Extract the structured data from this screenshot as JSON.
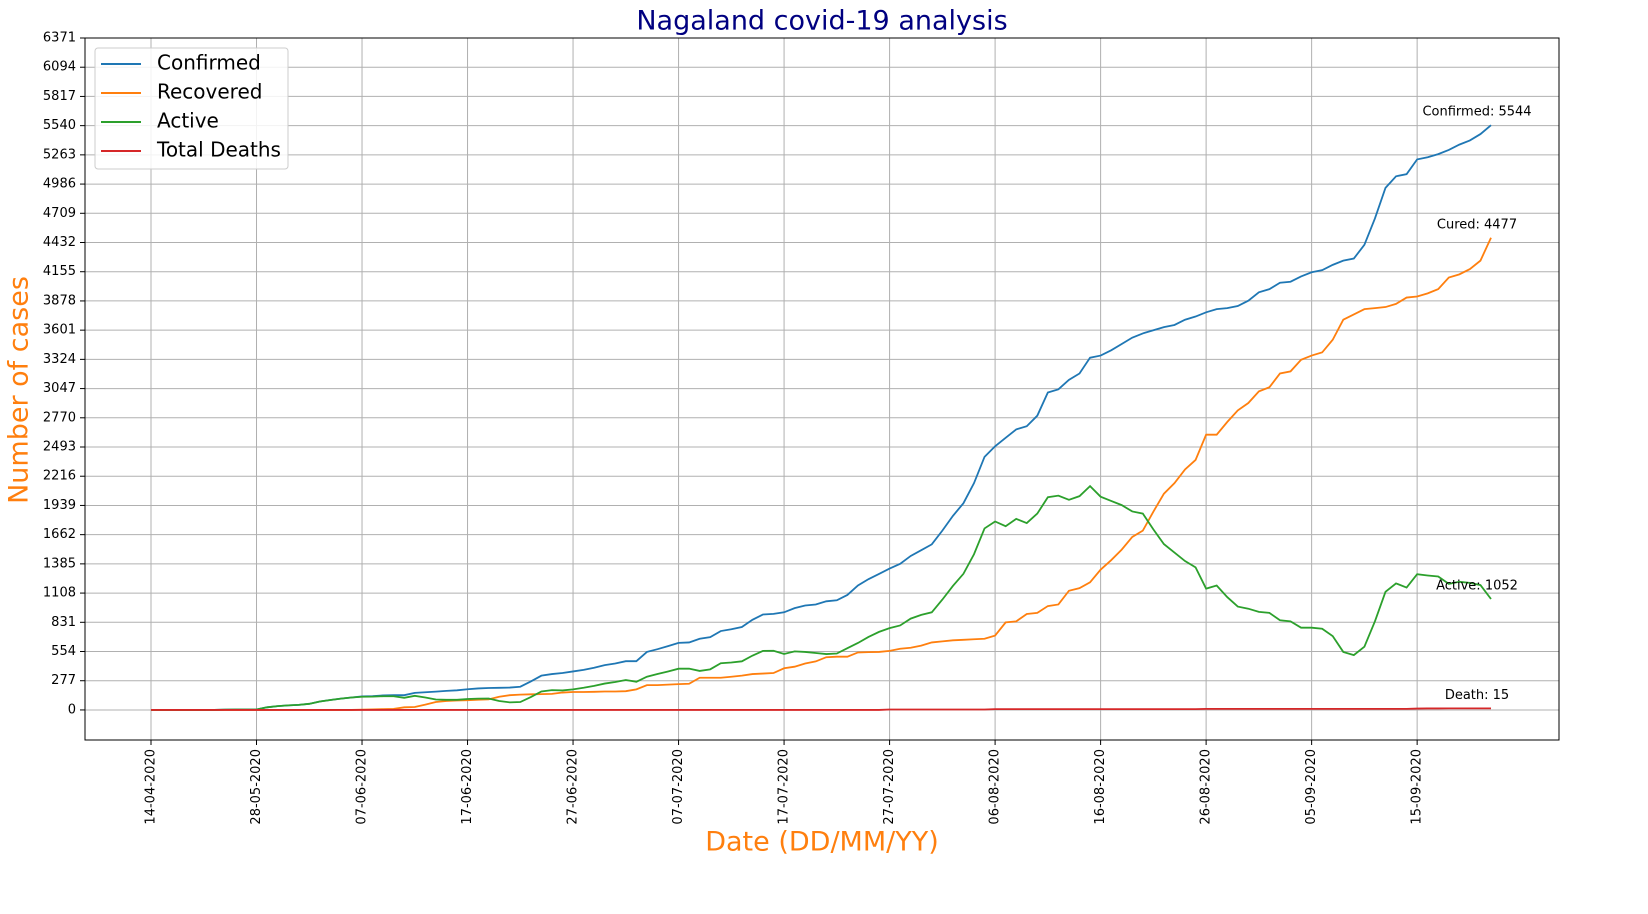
{
  "chart_data": {
    "type": "line",
    "title": "Nagaland covid-19 analysis",
    "x_label": "Date (DD/MM/YY)",
    "y_label": "Number of cases",
    "categories": [
      "14-04-2020",
      null,
      null,
      null,
      null,
      null,
      null,
      null,
      null,
      null,
      "28-05-2020",
      null,
      null,
      null,
      null,
      null,
      null,
      null,
      null,
      null,
      "07-06-2020",
      null,
      null,
      null,
      null,
      null,
      null,
      null,
      null,
      null,
      "17-06-2020",
      null,
      null,
      null,
      null,
      null,
      null,
      null,
      null,
      null,
      "27-06-2020",
      null,
      null,
      null,
      null,
      null,
      null,
      null,
      null,
      null,
      "07-07-2020",
      null,
      null,
      null,
      null,
      null,
      null,
      null,
      null,
      null,
      "17-07-2020",
      null,
      null,
      null,
      null,
      null,
      null,
      null,
      null,
      null,
      "27-07-2020",
      null,
      null,
      null,
      null,
      null,
      null,
      null,
      null,
      null,
      "06-08-2020",
      null,
      null,
      null,
      null,
      null,
      null,
      null,
      null,
      null,
      "16-08-2020",
      null,
      null,
      null,
      null,
      null,
      null,
      null,
      null,
      null,
      "26-08-2020",
      null,
      null,
      null,
      null,
      null,
      null,
      null,
      null,
      null,
      "05-09-2020",
      null,
      null,
      null,
      null,
      null,
      null,
      null,
      null,
      null,
      "15-09-2020",
      null,
      null,
      null,
      null,
      null,
      null,
      null
    ],
    "series": [
      {
        "name": "Confirmed",
        "color": "#1f77b4",
        "values": [
          0,
          0,
          0,
          0,
          0,
          0,
          0,
          3,
          4,
          4,
          4,
          25,
          36,
          43,
          48,
          58,
          80,
          94,
          107,
          118,
          128,
          131,
          138,
          140,
          140,
          162,
          168,
          174,
          181,
          186,
          196,
          204,
          208,
          210,
          212,
          220,
          270,
          325,
          340,
          350,
          365,
          380,
          400,
          425,
          440,
          462,
          462,
          550,
          576,
          605,
          636,
          640,
          675,
          690,
          748,
          765,
          786,
          855,
          905,
          911,
          926,
          965,
          990,
          1000,
          1030,
          1040,
          1090,
          1180,
          1240,
          1290,
          1340,
          1385,
          1460,
          1515,
          1570,
          1700,
          1840,
          1960,
          2150,
          2400,
          2500,
          2580,
          2660,
          2690,
          2790,
          3010,
          3040,
          3130,
          3190,
          3340,
          3360,
          3410,
          3470,
          3530,
          3570,
          3600,
          3630,
          3650,
          3700,
          3730,
          3770,
          3800,
          3810,
          3830,
          3880,
          3960,
          3990,
          4050,
          4060,
          4110,
          4150,
          4170,
          4220,
          4260,
          4280,
          4410,
          4660,
          4950,
          5060,
          5080,
          5220,
          5240,
          5270,
          5310,
          5360,
          5400,
          5460,
          5544
        ]
      },
      {
        "name": "Recovered",
        "color": "#ff7f0e",
        "values": [
          0,
          0,
          0,
          0,
          0,
          0,
          0,
          0,
          0,
          0,
          0,
          0,
          0,
          0,
          0,
          0,
          0,
          0,
          0,
          0,
          3,
          5,
          8,
          10,
          25,
          28,
          50,
          75,
          85,
          90,
          92,
          97,
          100,
          125,
          140,
          145,
          148,
          150,
          152,
          165,
          170,
          170,
          172,
          175,
          175,
          178,
          195,
          235,
          235,
          240,
          245,
          248,
          305,
          305,
          305,
          315,
          325,
          340,
          345,
          350,
          395,
          410,
          440,
          460,
          500,
          505,
          505,
          545,
          548,
          550,
          560,
          580,
          590,
          610,
          640,
          650,
          660,
          665,
          670,
          675,
          705,
          830,
          840,
          910,
          920,
          985,
          1000,
          1130,
          1155,
          1210,
          1330,
          1420,
          1520,
          1640,
          1700,
          1880,
          2050,
          2150,
          2280,
          2370,
          2610,
          2610,
          2730,
          2840,
          2910,
          3020,
          3060,
          3190,
          3210,
          3320,
          3360,
          3390,
          3510,
          3700,
          3750,
          3800,
          3810,
          3820,
          3850,
          3910,
          3920,
          3950,
          3990,
          4100,
          4130,
          4180,
          4260,
          4477
        ]
      },
      {
        "name": "Active",
        "color": "#2ca02c",
        "values": [
          0,
          0,
          0,
          0,
          0,
          0,
          0,
          3,
          4,
          4,
          4,
          25,
          36,
          43,
          48,
          58,
          80,
          94,
          107,
          118,
          125,
          126,
          130,
          130,
          115,
          134,
          118,
          99,
          96,
          96,
          104,
          107,
          108,
          85,
          72,
          75,
          122,
          175,
          188,
          185,
          195,
          210,
          228,
          250,
          265,
          284,
          267,
          315,
          341,
          365,
          391,
          392,
          370,
          385,
          443,
          450,
          461,
          515,
          560,
          561,
          531,
          555,
          550,
          540,
          530,
          535,
          585,
          635,
          692,
          740,
          776,
          801,
          866,
          901,
          926,
          1046,
          1176,
          1291,
          1476,
          1721,
          1787,
          1742,
          1812,
          1772,
          1862,
          2017,
          2032,
          1992,
          2027,
          2122,
          2022,
          1982,
          1942,
          1882,
          1862,
          1712,
          1572,
          1492,
          1412,
          1352,
          1150,
          1180,
          1070,
          980,
          960,
          930,
          920,
          850,
          840,
          780,
          780,
          770,
          700,
          550,
          520,
          600,
          840,
          1120,
          1200,
          1160,
          1287,
          1275,
          1265,
          1195,
          1215,
          1205,
          1184,
          1052
        ]
      },
      {
        "name": "Total Deaths",
        "color": "#d62728",
        "values": [
          0,
          0,
          0,
          0,
          0,
          0,
          0,
          0,
          0,
          0,
          0,
          0,
          0,
          0,
          0,
          0,
          0,
          0,
          0,
          0,
          0,
          0,
          0,
          0,
          0,
          0,
          0,
          0,
          0,
          0,
          0,
          0,
          0,
          0,
          0,
          0,
          0,
          0,
          0,
          0,
          0,
          0,
          0,
          0,
          0,
          0,
          0,
          0,
          0,
          0,
          0,
          0,
          0,
          0,
          0,
          0,
          0,
          0,
          0,
          0,
          0,
          0,
          0,
          0,
          0,
          0,
          0,
          0,
          0,
          0,
          4,
          4,
          4,
          4,
          4,
          4,
          4,
          4,
          4,
          4,
          8,
          8,
          8,
          8,
          8,
          8,
          8,
          8,
          8,
          8,
          8,
          8,
          8,
          8,
          8,
          8,
          8,
          8,
          8,
          8,
          10,
          10,
          10,
          10,
          10,
          10,
          10,
          10,
          10,
          10,
          10,
          10,
          10,
          10,
          10,
          10,
          10,
          10,
          10,
          10,
          13,
          14,
          14,
          15,
          15,
          15,
          15,
          15
        ]
      }
    ],
    "annotations": [
      "Confirmed: 5544",
      "Cured: 4477",
      "Active: 1052",
      "Death: 15"
    ],
    "ylim": [
      -285,
      6371
    ],
    "yticks": [
      0,
      277,
      554,
      831,
      1108,
      1385,
      1662,
      1939,
      2216,
      2493,
      2770,
      3047,
      3324,
      3601,
      3878,
      4155,
      4432,
      4709,
      4986,
      5263,
      5540,
      5817,
      6094,
      6371
    ],
    "grid": true,
    "legend": "upper left"
  }
}
